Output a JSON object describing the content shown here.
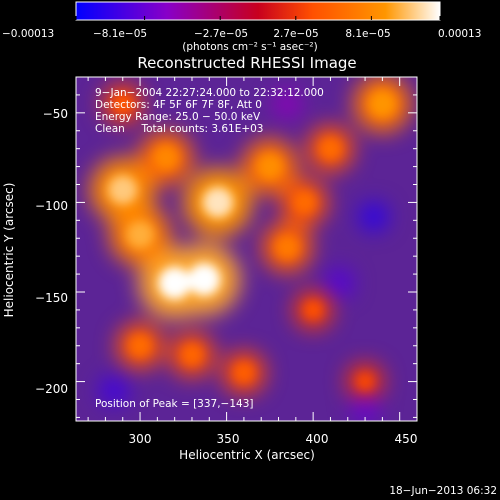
{
  "chart_data": {
    "type": "heatmap",
    "title": "Reconstructed RHESSI Image",
    "xlabel": "Heliocentric X (arcsec)",
    "ylabel": "Heliocentric Y (arcsec)",
    "xlim": [
      263,
      460
    ],
    "ylim": [
      -222,
      -30
    ],
    "x_ticks": [
      300,
      350,
      400,
      450
    ],
    "y_ticks": [
      -50,
      -100,
      -150,
      -200
    ],
    "x_tick_labels": [
      "300",
      "350",
      "400",
      "450"
    ],
    "y_tick_labels": [
      "−50",
      "−100",
      "−150",
      "−200"
    ],
    "colorbar": {
      "range": [
        -0.00013,
        0.00013
      ],
      "tick_values": [
        -0.00013,
        -8.1e-05,
        -2.7e-05,
        2.7e-05,
        8.1e-05,
        0.00013
      ],
      "tick_labels": [
        "−0.00013",
        "−8.1e−05",
        "−2.7e−05",
        "2.7e−05",
        "8.1e−05",
        "0.00013"
      ],
      "units": "(photons cm⁻² s⁻¹ asec⁻²)",
      "colors": [
        "#0000ff",
        "#8800c8",
        "#c8001e",
        "#ff5000",
        "#ff9600",
        "#ffffff"
      ]
    },
    "annotations": [
      "9−Jan−2004 22:27:24.000 to 22:32:12.000",
      "Detectors: 4F 5F 6F 7F 8F, Att 0",
      "Energy Range: 25.0 − 50.0 keV",
      "Clean     Total counts: 3.61E+03"
    ],
    "peak": {
      "label": "Position of Peak = [337,−143]",
      "x": 337,
      "y": -143
    },
    "sources": [
      {
        "x": 345,
        "y": -100,
        "value": 0.00012
      },
      {
        "x": 320,
        "y": -145,
        "value": 0.00013
      },
      {
        "x": 337,
        "y": -143,
        "value": 0.00013
      },
      {
        "x": 300,
        "y": -118,
        "value": 0.0001
      },
      {
        "x": 290,
        "y": -93,
        "value": 0.00011
      },
      {
        "x": 375,
        "y": -80,
        "value": 8.5e-05
      },
      {
        "x": 315,
        "y": -75,
        "value": 8e-05
      },
      {
        "x": 385,
        "y": -125,
        "value": 7e-05
      },
      {
        "x": 395,
        "y": -100,
        "value": 6e-05
      },
      {
        "x": 440,
        "y": -45,
        "value": 9e-05
      },
      {
        "x": 410,
        "y": -70,
        "value": 6e-05
      },
      {
        "x": 300,
        "y": -180,
        "value": 6e-05
      },
      {
        "x": 330,
        "y": -185,
        "value": 5.5e-05
      },
      {
        "x": 360,
        "y": -195,
        "value": 5e-05
      },
      {
        "x": 400,
        "y": -160,
        "value": 4e-05
      },
      {
        "x": 430,
        "y": -200,
        "value": 3.5e-05
      },
      {
        "x": 290,
        "y": -45,
        "value": 4.5e-05
      }
    ],
    "minima": [
      {
        "x": 435,
        "y": -108,
        "value": -0.00011
      },
      {
        "x": 285,
        "y": -205,
        "value": -0.0001
      },
      {
        "x": 415,
        "y": -145,
        "value": -9e-05
      },
      {
        "x": 430,
        "y": -215,
        "value": -8e-05
      },
      {
        "x": 385,
        "y": -45,
        "value": -6e-05
      }
    ]
  },
  "footer": {
    "date": "18−Jun−2013 06:32"
  }
}
